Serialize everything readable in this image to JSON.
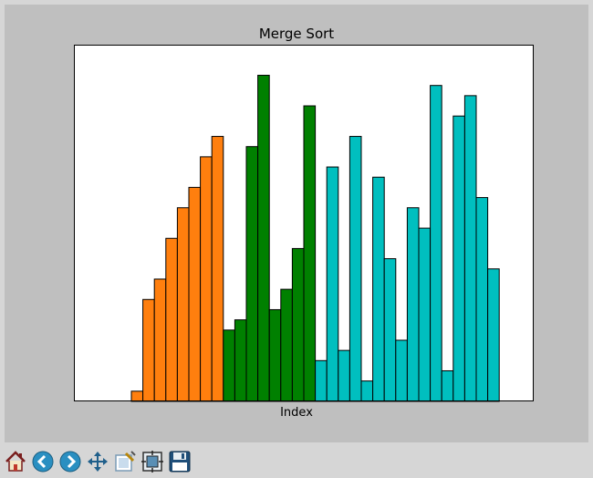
{
  "window": {
    "title": "Merge Sort"
  },
  "toolbar": {
    "buttons": [
      {
        "icon": "home-icon",
        "tooltip": ""
      },
      {
        "icon": "back-arrow-icon",
        "tooltip": ""
      },
      {
        "icon": "forward-arrow-icon",
        "tooltip": ""
      },
      {
        "icon": "pan-move-icon",
        "tooltip": ""
      },
      {
        "icon": "zoom-rect-icon",
        "tooltip": ""
      },
      {
        "icon": "subplots-config-icon",
        "tooltip": ""
      },
      {
        "icon": "save-floppy-icon",
        "tooltip": ""
      }
    ]
  },
  "chart_data": {
    "type": "bar",
    "title": "Merge Sort",
    "xlabel": "Index",
    "ylabel": "",
    "xticks_visible": false,
    "yticks_visible": false,
    "grid": false,
    "ylim": [
      0,
      35
    ],
    "x": [
      0,
      1,
      2,
      3,
      4,
      5,
      6,
      7,
      8,
      9,
      10,
      11,
      12,
      13,
      14,
      15,
      16,
      17,
      18,
      19,
      20,
      21,
      22,
      23,
      24,
      25,
      26,
      27,
      28,
      29,
      30,
      31,
      32,
      33,
      34,
      35,
      36,
      37,
      38,
      39
    ],
    "values": [
      0,
      0,
      0,
      0,
      0,
      1,
      10,
      12,
      16,
      19,
      21,
      24,
      26,
      7,
      8,
      25,
      32,
      9,
      11,
      15,
      29,
      4,
      23,
      5,
      26,
      2,
      22,
      14,
      6,
      19,
      17,
      31,
      3,
      28,
      30,
      20,
      13,
      0,
      0,
      0
    ],
    "colors": [
      "#ff7f0e",
      "#ff7f0e",
      "#ff7f0e",
      "#ff7f0e",
      "#ff7f0e",
      "#ff7f0e",
      "#ff7f0e",
      "#ff7f0e",
      "#ff7f0e",
      "#ff7f0e",
      "#ff7f0e",
      "#ff7f0e",
      "#ff7f0e",
      "#008000",
      "#008000",
      "#008000",
      "#008000",
      "#008000",
      "#008000",
      "#008000",
      "#008000",
      "#00bfbf",
      "#00bfbf",
      "#00bfbf",
      "#00bfbf",
      "#00bfbf",
      "#00bfbf",
      "#00bfbf",
      "#00bfbf",
      "#00bfbf",
      "#00bfbf",
      "#00bfbf",
      "#00bfbf",
      "#00bfbf",
      "#00bfbf",
      "#00bfbf",
      "#00bfbf",
      "#00bfbf",
      "#00bfbf",
      "#00bfbf"
    ],
    "edge_color": "#000000",
    "background": "#ffffff"
  }
}
